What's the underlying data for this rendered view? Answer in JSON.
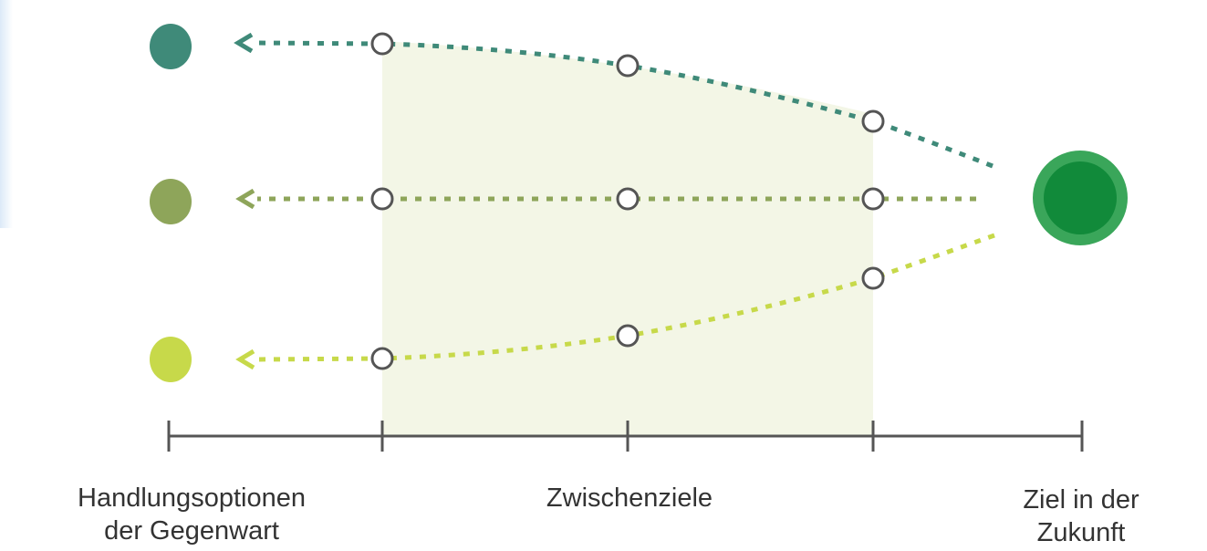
{
  "labels": {
    "present": [
      "Handlungsoptionen",
      "der Gegenwart"
    ],
    "intermediate": "Zwischenziele",
    "future": [
      "Ziel in der",
      "Zukunft"
    ]
  },
  "colors": {
    "path_top": "#3f8a79",
    "path_middle": "#8ea55a",
    "path_bottom": "#c7d94a",
    "goal_outer": "#3aa65a",
    "goal_inner": "#118a3a",
    "band": "#f3f6e6",
    "axis": "#555555",
    "milestone_stroke": "#555555"
  },
  "paths": [
    {
      "name": "top",
      "color": "#3f8a79"
    },
    {
      "name": "middle",
      "color": "#8ea55a"
    },
    {
      "name": "bottom",
      "color": "#c7d94a"
    }
  ]
}
